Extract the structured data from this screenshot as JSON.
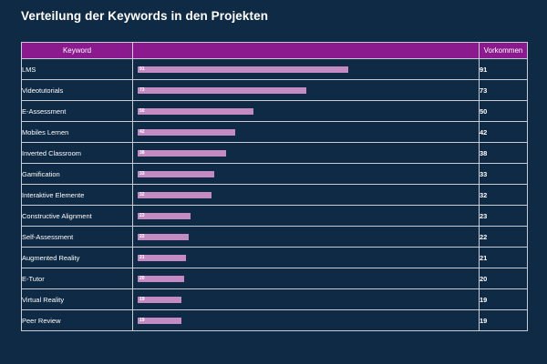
{
  "title": "Verteilung der Keywords in den Projekten",
  "colors": {
    "background": "#0f2a45",
    "header": "#8a1a8e",
    "bar": "#c48ac2",
    "border": "#c9cdd3"
  },
  "table": {
    "headers": {
      "keyword": "Keyword",
      "bar": "",
      "count": "Vorkommen"
    }
  },
  "chart_data": {
    "type": "bar",
    "title": "Verteilung der Keywords in den Projekten",
    "orientation": "horizontal",
    "xlabel": "",
    "ylabel": "",
    "xlim": [
      0,
      100
    ],
    "categories": [
      "LMS",
      "Videotutorials",
      "E-Assessment",
      "Mobiles Lernen",
      "Inverted Classroom",
      "Gamification",
      "Interaktive Elemente",
      "Constructive Alignment",
      "Self-Assessment",
      "Augmented Reality",
      "E-Tutor",
      "Virtual Reality",
      "Peer Review"
    ],
    "values": [
      91,
      73,
      50,
      42,
      38,
      33,
      32,
      23,
      22,
      21,
      20,
      19,
      19
    ]
  }
}
